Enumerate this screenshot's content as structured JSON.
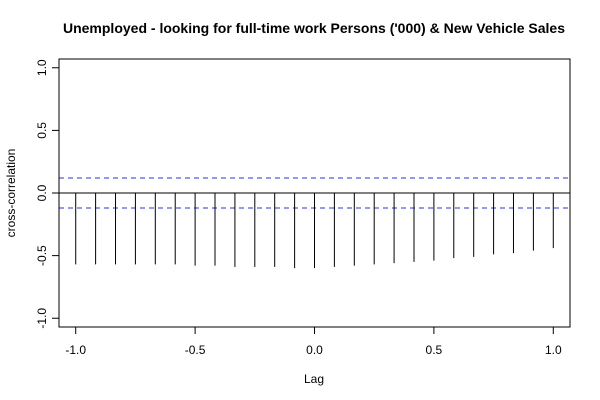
{
  "chart_data": {
    "type": "bar",
    "title": "Unemployed - looking for full-time work Persons ('000) & New Vehicle Sales",
    "xlabel": "Lag",
    "ylabel": "cross-correlation",
    "xlim": [
      -1.07,
      1.07
    ],
    "ylim": [
      -1.07,
      1.07
    ],
    "x_ticks": [
      -1.0,
      -0.5,
      0.0,
      0.5,
      1.0
    ],
    "x_tick_labels": [
      "-1.0",
      "-0.5",
      "0.0",
      "0.5",
      "1.0"
    ],
    "y_ticks": [
      -1.0,
      -0.5,
      0.0,
      0.5,
      1.0
    ],
    "y_tick_labels": [
      "-1.0",
      "-0.5",
      "0.0",
      "0.5",
      "1.0"
    ],
    "grid": false,
    "confidence_bound": 0.12,
    "confidence_color": "#5a5adc",
    "zero_line": 0,
    "lags": [
      -1.0,
      -0.9167,
      -0.8333,
      -0.75,
      -0.6667,
      -0.5833,
      -0.5,
      -0.4167,
      -0.3333,
      -0.25,
      -0.1667,
      -0.0833,
      0.0,
      0.0833,
      0.1667,
      0.25,
      0.3333,
      0.4167,
      0.5,
      0.5833,
      0.6667,
      0.75,
      0.8333,
      0.9167,
      1.0
    ],
    "values": [
      -0.57,
      -0.57,
      -0.57,
      -0.57,
      -0.57,
      -0.57,
      -0.58,
      -0.58,
      -0.59,
      -0.59,
      -0.59,
      -0.6,
      -0.6,
      -0.59,
      -0.58,
      -0.57,
      -0.56,
      -0.55,
      -0.54,
      -0.52,
      -0.51,
      -0.49,
      -0.48,
      -0.46,
      -0.44
    ]
  }
}
